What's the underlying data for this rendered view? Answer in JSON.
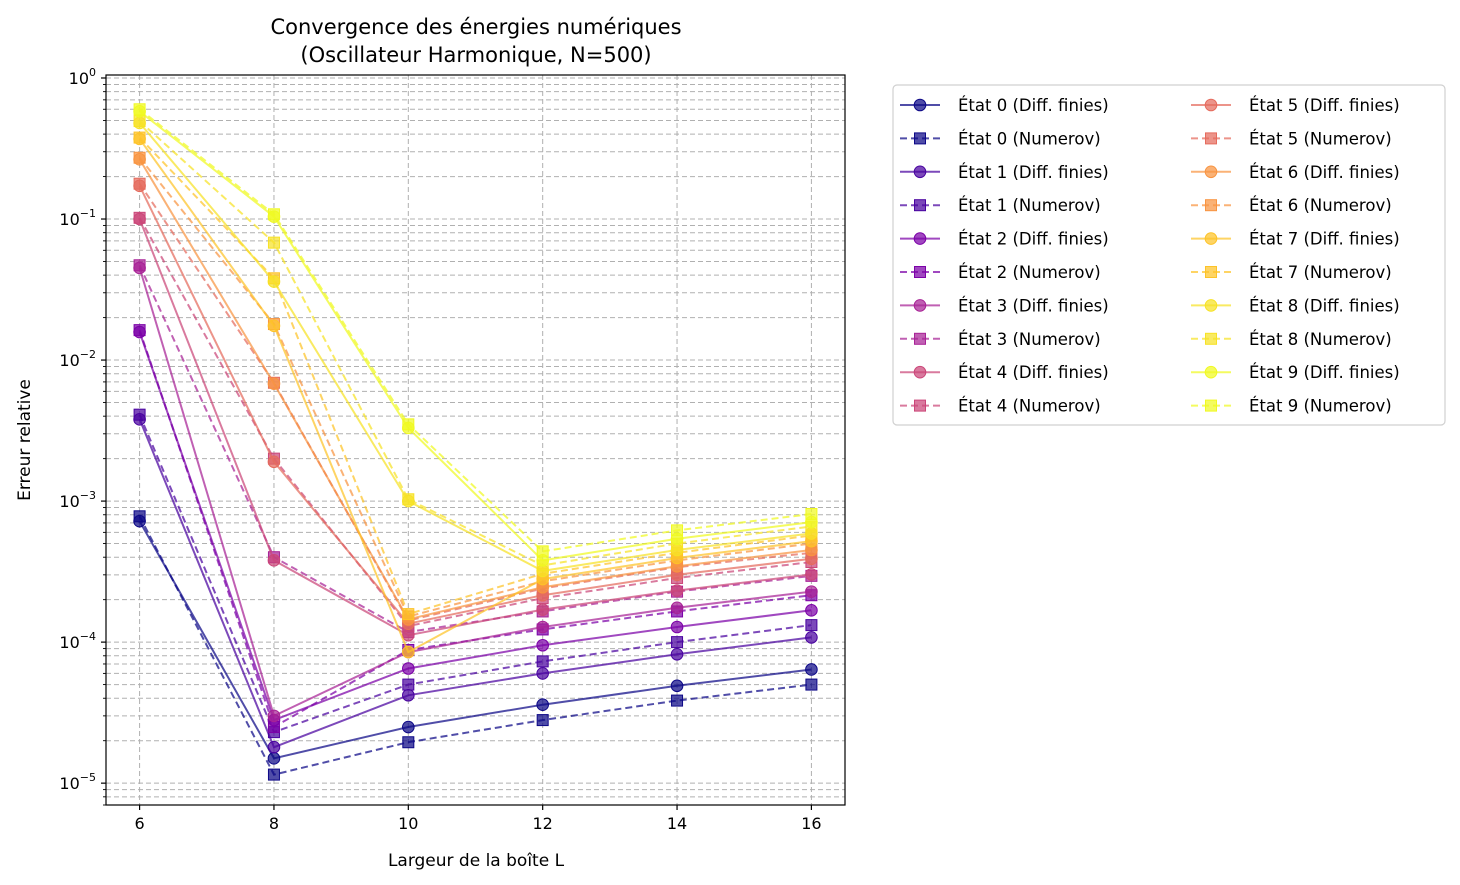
{
  "chart_data": {
    "type": "line",
    "title": "Convergence des énergies numériques\n(Oscillateur Harmonique, N=500)",
    "xlabel": "Largeur de la boîte L",
    "ylabel": "Erreur relative",
    "x": [
      6,
      8,
      10,
      12,
      14,
      16
    ],
    "xlim": [
      5.5,
      16.5
    ],
    "ylim": [
      7e-06,
      1.05
    ],
    "yscale": "log",
    "xticks": [
      "6",
      "8",
      "10",
      "12",
      "14",
      "16"
    ],
    "yticks": [
      {
        "exp": "0",
        "value": 1
      },
      {
        "exp": "-1",
        "value": 0.1
      },
      {
        "exp": "-2",
        "value": 0.01
      },
      {
        "exp": "-3",
        "value": 0.001
      },
      {
        "exp": "-4",
        "value": 0.0001
      },
      {
        "exp": "-5",
        "value": 1e-05
      }
    ],
    "grid": true,
    "legend": {
      "placement": "outside-top-right",
      "columns": 2
    },
    "series": [
      {
        "name": "État 0 (Diff. finies)",
        "color": "#0d0887",
        "marker": "circle",
        "dashed": false,
        "values": [
          0.00072,
          1.5e-05,
          2.5e-05,
          3.6e-05,
          4.9e-05,
          6.4e-05
        ]
      },
      {
        "name": "État 0 (Numerov)",
        "color": "#0d0887",
        "marker": "square",
        "dashed": true,
        "values": [
          0.00078,
          1.15e-05,
          1.95e-05,
          2.8e-05,
          3.85e-05,
          5e-05
        ]
      },
      {
        "name": "État 1 (Diff. finies)",
        "color": "#4903a0",
        "marker": "circle",
        "dashed": false,
        "values": [
          0.0038,
          1.8e-05,
          4.2e-05,
          6e-05,
          8.2e-05,
          0.000108
        ]
      },
      {
        "name": "État 1 (Numerov)",
        "color": "#4903a0",
        "marker": "square",
        "dashed": true,
        "values": [
          0.0041,
          2.3e-05,
          5e-05,
          7.3e-05,
          0.0001,
          0.000132
        ]
      },
      {
        "name": "État 2 (Diff. finies)",
        "color": "#7c02a8",
        "marker": "circle",
        "dashed": false,
        "values": [
          0.0158,
          2.8e-05,
          6.5e-05,
          9.5e-05,
          0.000128,
          0.000168
        ]
      },
      {
        "name": "État 2 (Numerov)",
        "color": "#7c02a8",
        "marker": "square",
        "dashed": true,
        "values": [
          0.0163,
          2.5e-05,
          8.8e-05,
          0.000123,
          0.000165,
          0.000215
        ]
      },
      {
        "name": "État 3 (Diff. finies)",
        "color": "#a82296",
        "marker": "circle",
        "dashed": false,
        "values": [
          0.045,
          3e-05,
          8.5e-05,
          0.000128,
          0.000175,
          0.000228
        ]
      },
      {
        "name": "État 3 (Numerov)",
        "color": "#a82296",
        "marker": "square",
        "dashed": true,
        "values": [
          0.047,
          0.0004,
          0.000118,
          0.000165,
          0.000228,
          0.000295
        ]
      },
      {
        "name": "État 4 (Diff. finies)",
        "color": "#cb4679",
        "marker": "circle",
        "dashed": false,
        "values": [
          0.1,
          0.00038,
          0.000112,
          0.00017,
          0.000232,
          0.000302
        ]
      },
      {
        "name": "État 4 (Numerov)",
        "color": "#cb4679",
        "marker": "square",
        "dashed": true,
        "values": [
          0.102,
          0.002,
          0.00013,
          0.000205,
          0.000285,
          0.00037
        ]
      },
      {
        "name": "État 5 (Diff. finies)",
        "color": "#e56b5d",
        "marker": "circle",
        "dashed": false,
        "values": [
          0.172,
          0.0019,
          0.000135,
          0.000215,
          0.0003,
          0.00039
        ]
      },
      {
        "name": "État 5 (Numerov)",
        "color": "#e56b5d",
        "marker": "square",
        "dashed": true,
        "values": [
          0.178,
          0.0069,
          0.000142,
          0.00024,
          0.00034,
          0.00043
        ]
      },
      {
        "name": "État 6 (Diff. finies)",
        "color": "#f89441",
        "marker": "circle",
        "dashed": false,
        "values": [
          0.265,
          0.0068,
          0.000145,
          0.000245,
          0.000345,
          0.00045
        ]
      },
      {
        "name": "État 6 (Numerov)",
        "color": "#f89441",
        "marker": "square",
        "dashed": true,
        "values": [
          0.272,
          0.018,
          0.000152,
          0.00027,
          0.00038,
          0.0005
        ]
      },
      {
        "name": "État 7 (Diff. finies)",
        "color": "#fdc328",
        "marker": "circle",
        "dashed": false,
        "values": [
          0.37,
          0.0175,
          8.5e-05,
          0.00028,
          0.000395,
          0.00052
        ]
      },
      {
        "name": "État 7 (Numerov)",
        "color": "#fdc328",
        "marker": "square",
        "dashed": true,
        "values": [
          0.378,
          0.038,
          0.000158,
          0.000305,
          0.00043,
          0.00057
        ]
      },
      {
        "name": "État 8 (Diff. finies)",
        "color": "#f7e225",
        "marker": "circle",
        "dashed": false,
        "values": [
          0.48,
          0.036,
          0.001,
          0.00032,
          0.00045,
          0.00059
        ]
      },
      {
        "name": "État 8 (Numerov)",
        "color": "#f7e225",
        "marker": "square",
        "dashed": true,
        "values": [
          0.495,
          0.068,
          0.00103,
          0.00035,
          0.0005,
          0.00066
        ]
      },
      {
        "name": "État 9 (Diff. finies)",
        "color": "#f0f921",
        "marker": "circle",
        "dashed": false,
        "values": [
          0.58,
          0.104,
          0.0033,
          0.00038,
          0.00054,
          0.00071
        ]
      },
      {
        "name": "État 9 (Numerov)",
        "color": "#f0f921",
        "marker": "square",
        "dashed": true,
        "values": [
          0.6,
          0.108,
          0.0035,
          0.00044,
          0.00062,
          0.00081
        ]
      }
    ]
  }
}
